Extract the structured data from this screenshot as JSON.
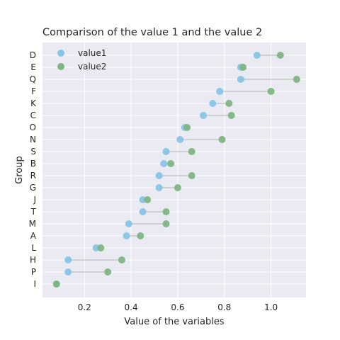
{
  "chart_data": {
    "type": "scatter",
    "title": "Comparison of the value 1 and the value 2",
    "xlabel": "Value of the variables",
    "ylabel": "Group",
    "xlim": [
      0.02,
      1.15
    ],
    "xticks": [
      0.2,
      0.4,
      0.6,
      0.8,
      1.0
    ],
    "xtick_labels": [
      "0.2",
      "0.4",
      "0.6",
      "0.8",
      "1.0"
    ],
    "grid": true,
    "legend_position": "top-left",
    "categories": [
      "D",
      "E",
      "Q",
      "F",
      "K",
      "C",
      "O",
      "N",
      "S",
      "B",
      "R",
      "G",
      "J",
      "T",
      "M",
      "A",
      "L",
      "H",
      "P",
      "I"
    ],
    "series": [
      {
        "name": "value1",
        "color": "#89c4e6",
        "values": [
          0.94,
          0.87,
          0.87,
          0.78,
          0.75,
          0.71,
          0.63,
          0.61,
          0.55,
          0.54,
          0.52,
          0.52,
          0.45,
          0.45,
          0.39,
          0.38,
          0.25,
          0.13,
          0.13,
          0.08
        ]
      },
      {
        "name": "value2",
        "color": "#7fb582",
        "values": [
          1.04,
          0.88,
          1.11,
          1.0,
          0.82,
          0.83,
          0.64,
          0.79,
          0.66,
          0.57,
          0.66,
          0.6,
          0.47,
          0.55,
          0.55,
          0.44,
          0.27,
          0.36,
          0.3,
          0.08
        ]
      }
    ],
    "connector_color": "#c8c8c8",
    "background_color": "#eaeaf2",
    "grid_color": "#ffffff"
  }
}
